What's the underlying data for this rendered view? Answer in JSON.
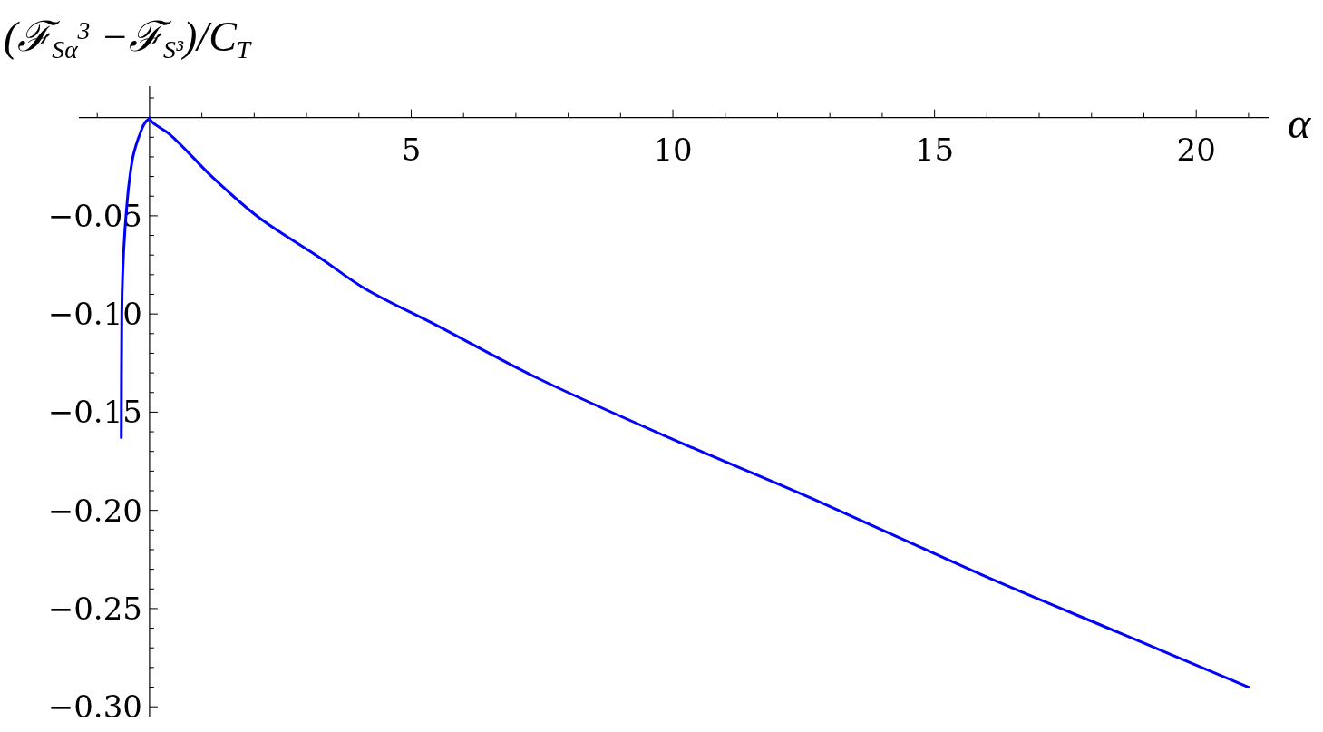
{
  "chart_data": {
    "type": "line",
    "xlabel": "α",
    "ylabel": "(ℱ$_{S}$$_{α}$$^{3}$ −ℱ$_{S³}$)/C$_{T}$",
    "xlim": [
      -1.35,
      21.4
    ],
    "ylim": [
      -0.305,
      0.016
    ],
    "xticks": [
      {
        "value": -1,
        "label": null
      },
      {
        "value": 1,
        "label": null
      },
      {
        "value": 2,
        "label": null
      },
      {
        "value": 3,
        "label": null
      },
      {
        "value": 4,
        "label": null
      },
      5,
      {
        "value": 6,
        "label": null
      },
      {
        "value": 7,
        "label": null
      },
      {
        "value": 8,
        "label": null
      },
      {
        "value": 9,
        "label": null
      },
      10,
      {
        "value": 11,
        "label": null
      },
      {
        "value": 12,
        "label": null
      },
      {
        "value": 13,
        "label": null
      },
      {
        "value": 14,
        "label": null
      },
      15,
      {
        "value": 16,
        "label": null
      },
      {
        "value": 17,
        "label": null
      },
      {
        "value": 18,
        "label": null
      },
      {
        "value": 19,
        "label": null
      },
      20,
      {
        "value": 21,
        "label": null
      }
    ],
    "yticks": [
      {
        "value": 0.01,
        "label": null
      },
      {
        "value": -0.01,
        "label": null
      },
      {
        "value": -0.02,
        "label": null
      },
      {
        "value": -0.03,
        "label": null
      },
      {
        "value": -0.04,
        "label": null
      },
      {
        "value": -0.05,
        "label": "−0.05"
      },
      {
        "value": -0.06,
        "label": null
      },
      {
        "value": -0.07,
        "label": null
      },
      {
        "value": -0.08,
        "label": null
      },
      {
        "value": -0.09,
        "label": null
      },
      {
        "value": -0.1,
        "label": "−0.10"
      },
      {
        "value": -0.11,
        "label": null
      },
      {
        "value": -0.12,
        "label": null
      },
      {
        "value": -0.13,
        "label": null
      },
      {
        "value": -0.14,
        "label": null
      },
      {
        "value": -0.15,
        "label": "−0.15"
      },
      {
        "value": -0.16,
        "label": null
      },
      {
        "value": -0.17,
        "label": null
      },
      {
        "value": -0.18,
        "label": null
      },
      {
        "value": -0.19,
        "label": null
      },
      {
        "value": -0.2,
        "label": "−0.20"
      },
      {
        "value": -0.21,
        "label": null
      },
      {
        "value": -0.22,
        "label": null
      },
      {
        "value": -0.23,
        "label": null
      },
      {
        "value": -0.24,
        "label": null
      },
      {
        "value": -0.25,
        "label": "−0.25"
      },
      {
        "value": -0.26,
        "label": null
      },
      {
        "value": -0.27,
        "label": null
      },
      {
        "value": -0.28,
        "label": null
      },
      {
        "value": -0.29,
        "label": null
      },
      {
        "value": -0.3,
        "label": "−0.30"
      }
    ],
    "series": [
      {
        "color": "#0000ff",
        "x": [
          -0.54,
          -0.53,
          -0.45,
          -0.39,
          -0.3,
          -0.19,
          -0.07,
          0,
          0.39,
          1.19,
          2.13,
          3.27,
          4.08,
          5.5,
          7.4,
          9.93,
          12.66,
          14.3,
          16.09,
          18.5,
          21.0
        ],
        "values": [
          -0.163,
          -0.1,
          -0.05,
          -0.033,
          -0.018,
          -0.0088,
          -0.002,
          0,
          -0.0086,
          -0.03,
          -0.0517,
          -0.0716,
          -0.0865,
          -0.106,
          -0.1325,
          -0.163,
          -0.194,
          -0.2136,
          -0.235,
          -0.262,
          -0.29
        ]
      }
    ]
  }
}
